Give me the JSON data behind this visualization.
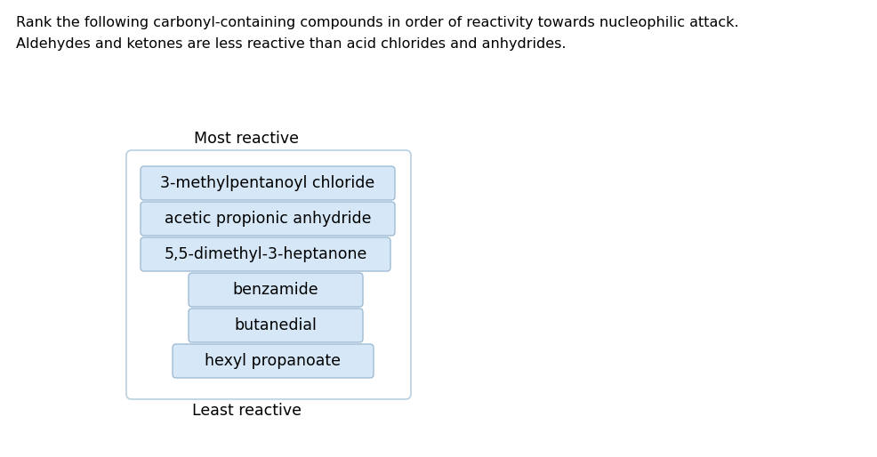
{
  "title_line1": "Rank the following carbonyl-containing compounds in order of reactivity towards nucleophilic attack.",
  "title_line2": "Aldehydes and ketones are less reactive than acid chlorides and anhydrides.",
  "most_reactive_label": "Most reactive",
  "least_reactive_label": "Least reactive",
  "compounds": [
    "3-methylpentanoyl chloride",
    "acetic propionic anhydride",
    "5,5-dimethyl-3-heptanone",
    "benzamide",
    "butanedial",
    "hexyl propanoate"
  ],
  "outer_box_color": "#b8cfe0",
  "inner_box_fill": "#d6e8f7",
  "inner_box_edge": "#a0bcd4",
  "bg_color": "#ffffff",
  "title_fontsize": 11.5,
  "label_fontsize": 12.5,
  "compound_fontsize": 12.5,
  "fig_width": 9.86,
  "fig_height": 5.14,
  "dpi": 100
}
